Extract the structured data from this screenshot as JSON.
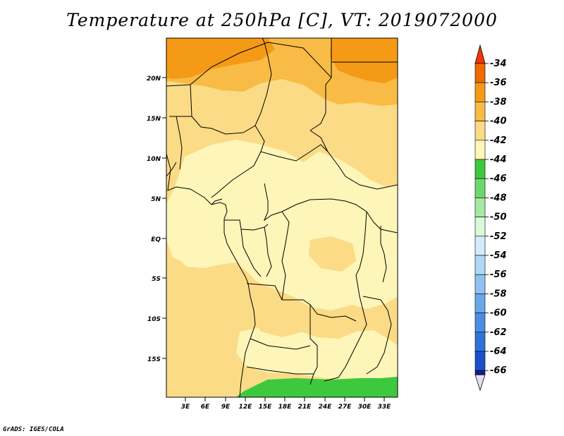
{
  "title": "Temperature at 250hPa [C], VT: 2019072000",
  "credit": "GrADS: IGES/COLA",
  "map": {
    "lat_labels": [
      "20N",
      "15N",
      "10N",
      "5N",
      "EQ",
      "5S",
      "10S",
      "15S"
    ],
    "lon_labels": [
      "3E",
      "6E",
      "9E",
      "12E",
      "15E",
      "18E",
      "21E",
      "24E",
      "27E",
      "30E",
      "33E"
    ],
    "colors": {
      "c34_36": "#f06a00",
      "c36_38": "#f59a16",
      "c38_40": "#f8bb45",
      "c40_42": "#fbdb85",
      "c42_44": "#fef5b8",
      "cgreen": "#3ec83e",
      "coast": "#000000"
    }
  },
  "colorbar": {
    "labels": [
      "-34",
      "-36",
      "-38",
      "-40",
      "-42",
      "-44",
      "-46",
      "-48",
      "-50",
      "-52",
      "-54",
      "-56",
      "-58",
      "-60",
      "-62",
      "-64",
      "-66"
    ],
    "colors": [
      "#f06a00",
      "#f59a16",
      "#f8bb45",
      "#fbdb85",
      "#fef5b8",
      "#3ec83e",
      "#6cd86c",
      "#a6e9a2",
      "#d9f9d9",
      "#d2ecfb",
      "#b1d8f6",
      "#8ec2f1",
      "#6aa7ea",
      "#4a8ee3",
      "#2f72da",
      "#1b50c9",
      "#1b1c7d"
    ],
    "top_arrow_color": "#f03800",
    "bottom_arrow_color": "#e2e0f8"
  }
}
